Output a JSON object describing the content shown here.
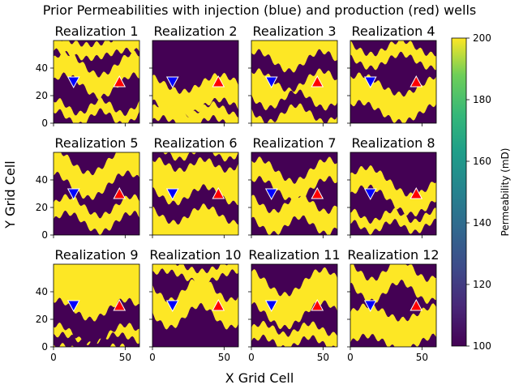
{
  "chart_data": {
    "type": "heatmap",
    "title": "Prior Permeabilities with injection (blue) and production (red) wells",
    "xlabel": "X Grid Cell",
    "ylabel": "Y Grid Cell",
    "grid_size": [
      60,
      60
    ],
    "xlim": [
      0,
      60
    ],
    "ylim": [
      0,
      60
    ],
    "x_ticks": [
      0,
      50
    ],
    "y_ticks": [
      0,
      20,
      40
    ],
    "colorbar": {
      "label": "Permeability (mD)",
      "range": [
        100,
        200
      ],
      "ticks": [
        100,
        120,
        140,
        160,
        180,
        200
      ],
      "colormap": "viridis",
      "low_color": "#440154",
      "high_color": "#fde725"
    },
    "wells": {
      "injection": {
        "x": 14,
        "y": 30,
        "marker": "triangle-down",
        "color": "#0000ff"
      },
      "production": {
        "x": 46,
        "y": 30,
        "marker": "triangle-up",
        "color": "#ff0000"
      }
    },
    "realizations": [
      {
        "title": "Realization 1",
        "background": "low",
        "bands": [
          {
            "c": 35,
            "a": 8,
            "f": 1.3,
            "p": 0.5,
            "w": 8
          },
          {
            "c": 8,
            "a": 5,
            "f": 2.0,
            "p": 1.2,
            "w": 4
          },
          {
            "c": 55,
            "a": 3,
            "f": 1.1,
            "p": 2.0,
            "w": 5
          }
        ]
      },
      {
        "title": "Realization 2",
        "background": "low",
        "bands": [
          {
            "c": 20,
            "a": 6,
            "f": 1.2,
            "p": 2.2,
            "w": 9
          },
          {
            "c": 5,
            "a": 4,
            "f": 1.8,
            "p": 0.3,
            "w": 5
          }
        ]
      },
      {
        "title": "Realization 3",
        "background": "high",
        "bands": [
          {
            "c": 38,
            "a": 7,
            "f": 1.4,
            "p": 1.0,
            "w": 7
          },
          {
            "c": 12,
            "a": 6,
            "f": 1.6,
            "p": 2.8,
            "w": 5
          }
        ]
      },
      {
        "title": "Realization 4",
        "background": "low",
        "bands": [
          {
            "c": 18,
            "a": 7,
            "f": 1.1,
            "p": 0.8,
            "w": 10
          },
          {
            "c": 50,
            "a": 5,
            "f": 1.5,
            "p": 2.5,
            "w": 5
          }
        ]
      },
      {
        "title": "Realization 5",
        "background": "low",
        "bands": [
          {
            "c": 45,
            "a": 9,
            "f": 1.2,
            "p": 1.7,
            "w": 9
          },
          {
            "c": 15,
            "a": 7,
            "f": 1.4,
            "p": 0.2,
            "w": 6
          }
        ]
      },
      {
        "title": "Realization 6",
        "background": "high",
        "bands": [
          {
            "c": 22,
            "a": 6,
            "f": 1.5,
            "p": 2.4,
            "w": 7
          },
          {
            "c": 55,
            "a": 4,
            "f": 1.9,
            "p": 1.1,
            "w": 4
          }
        ]
      },
      {
        "title": "Realization 7",
        "background": "low",
        "bands": [
          {
            "c": 40,
            "a": 8,
            "f": 1.3,
            "p": 0.9,
            "w": 7
          },
          {
            "c": 15,
            "a": 6,
            "f": 1.7,
            "p": 2.1,
            "w": 8
          }
        ]
      },
      {
        "title": "Realization 8",
        "background": "low",
        "bands": [
          {
            "c": 32,
            "a": 10,
            "f": 1.0,
            "p": 0.4,
            "w": 7
          },
          {
            "c": 10,
            "a": 4,
            "f": 2.1,
            "p": 1.6,
            "w": 4
          }
        ]
      },
      {
        "title": "Realization 9",
        "background": "high",
        "bands": [
          {
            "c": 18,
            "a": 7,
            "f": 1.3,
            "p": 1.3,
            "w": 9
          },
          {
            "c": 2,
            "a": 3,
            "f": 1.6,
            "p": 0.7,
            "w": 4
          }
        ]
      },
      {
        "title": "Realization 10",
        "background": "low",
        "bands": [
          {
            "c": 32,
            "a": 8,
            "f": 1.5,
            "p": 2.9,
            "w": 10
          },
          {
            "c": 55,
            "a": 4,
            "f": 1.2,
            "p": 0.6,
            "w": 4
          }
        ]
      },
      {
        "title": "Realization 11",
        "background": "low",
        "bands": [
          {
            "c": 35,
            "a": 9,
            "f": 1.2,
            "p": 1.9,
            "w": 12
          },
          {
            "c": 8,
            "a": 4,
            "f": 1.9,
            "p": 0.1,
            "w": 5
          }
        ]
      },
      {
        "title": "Realization 12",
        "background": "low",
        "bands": [
          {
            "c": 14,
            "a": 5,
            "f": 1.3,
            "p": 0.0,
            "w": 11
          },
          {
            "c": 48,
            "a": 7,
            "f": 1.6,
            "p": 2.3,
            "w": 8
          }
        ]
      }
    ]
  }
}
